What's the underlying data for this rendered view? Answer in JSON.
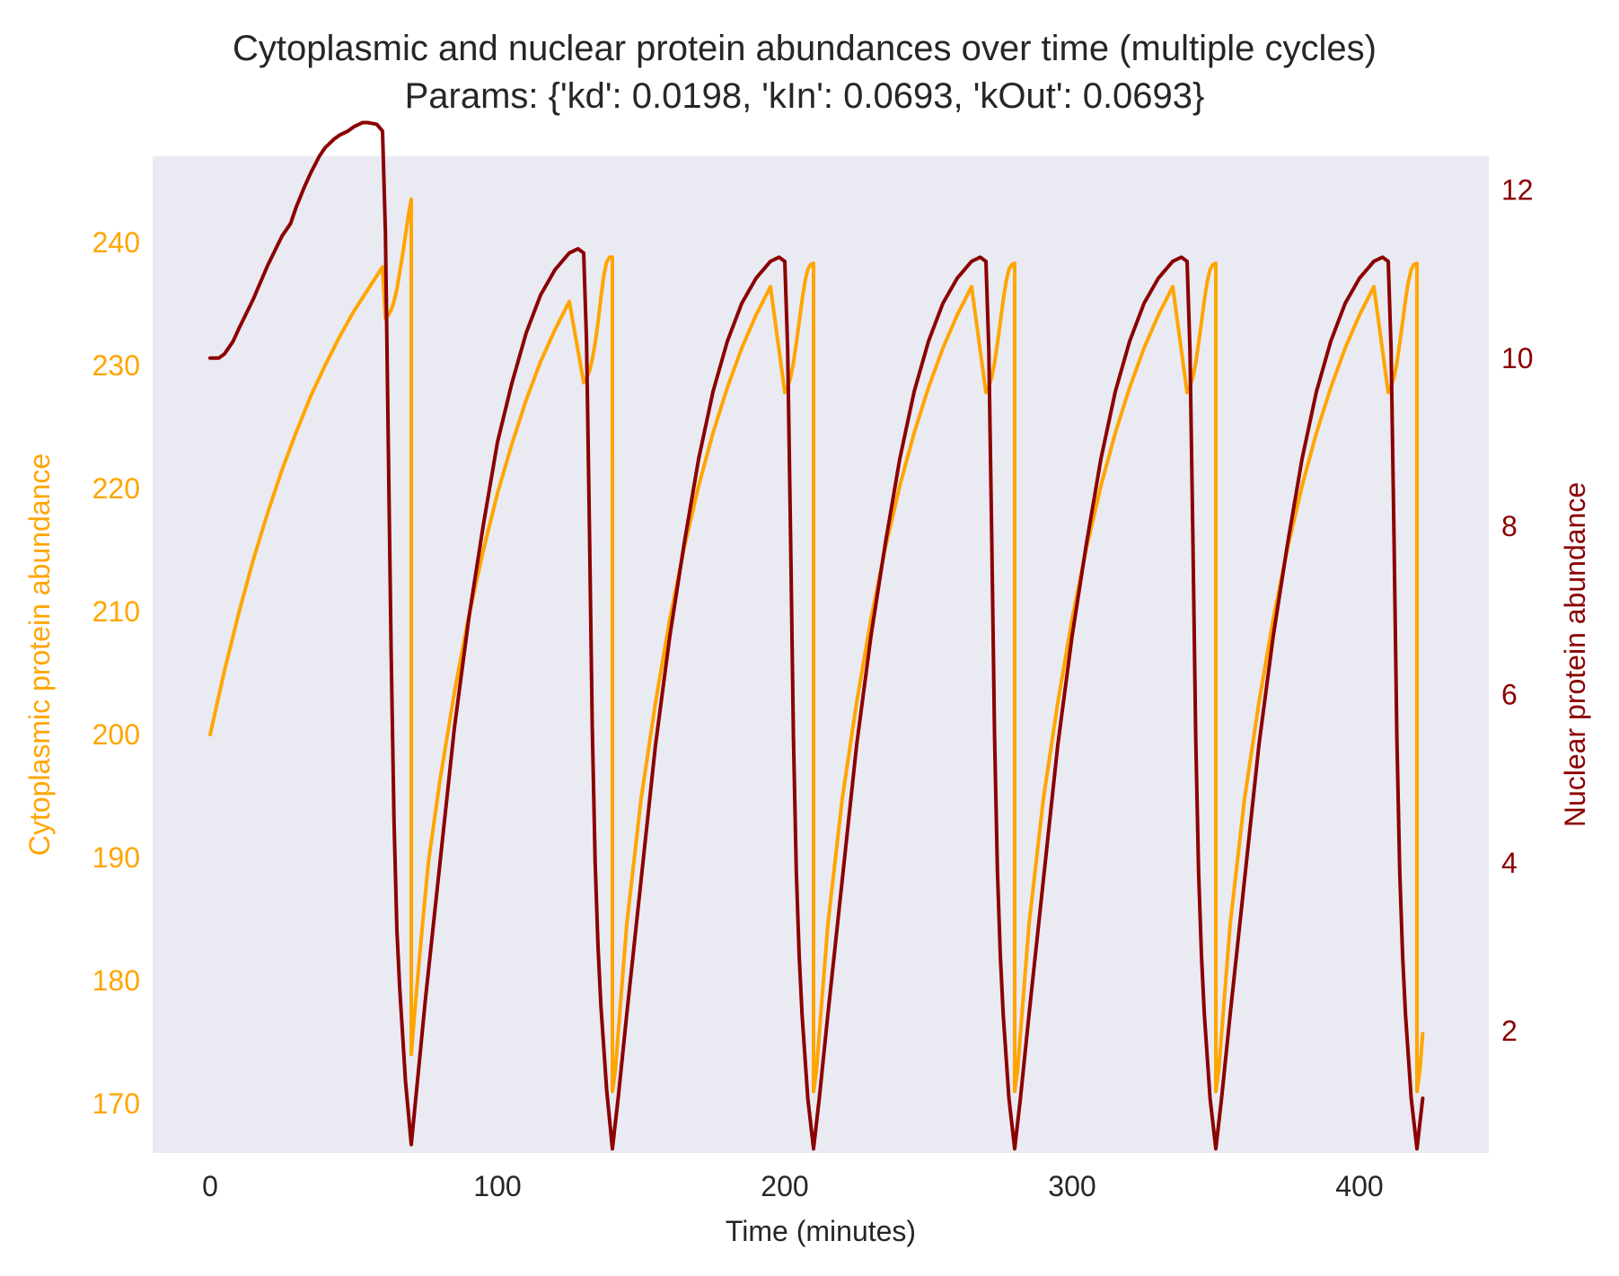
{
  "chart_data": {
    "type": "line",
    "title": "Cytoplasmic and nuclear protein abundances over time (multiple cycles)",
    "subtitle": "Params: {'kd': 0.0198, 'kIn': 0.0693, 'kOut': 0.0693}",
    "xlabel": "Time (minutes)",
    "ylabel_left": "Cytoplasmic protein abundance",
    "ylabel_right": "Nuclear protein abundance",
    "xlim": [
      -20,
      445
    ],
    "ylim_left": [
      166,
      247
    ],
    "ylim_right": [
      0.55,
      12.4
    ],
    "x_ticks": [
      0,
      100,
      200,
      300,
      400
    ],
    "y_ticks_left": [
      170,
      180,
      190,
      200,
      210,
      220,
      230,
      240
    ],
    "y_ticks_right": [
      2,
      4,
      6,
      8,
      10,
      12
    ],
    "grid": false,
    "background": "#eaeaf2",
    "colors": {
      "cytoplasmic": "#ffa500",
      "nuclear": "#8b0000",
      "text": "#262626"
    },
    "series": [
      {
        "axis": "left",
        "color": "#ffa500",
        "x": [
          0,
          5,
          10,
          15,
          20,
          25,
          30,
          35,
          40,
          45,
          50,
          55,
          60,
          61,
          62,
          63,
          64,
          65,
          66,
          67,
          68,
          69,
          70,
          70.01,
          71,
          72,
          74,
          76,
          80,
          85,
          90,
          95,
          100,
          105,
          110,
          115,
          120,
          125,
          130,
          131,
          132,
          133,
          134,
          135,
          136,
          137,
          138,
          139,
          140,
          140.01,
          141,
          142,
          145,
          150,
          155,
          160,
          165,
          170,
          175,
          180,
          185,
          190,
          195,
          200,
          201,
          202,
          203,
          204,
          205,
          206,
          207,
          208,
          209,
          210,
          210.01,
          211,
          212,
          215,
          220,
          225,
          230,
          235,
          240,
          245,
          250,
          255,
          260,
          265,
          270,
          271,
          272,
          273,
          274,
          275,
          276,
          277,
          278,
          279,
          280,
          280.01,
          281,
          282,
          285,
          290,
          295,
          300,
          305,
          310,
          315,
          320,
          325,
          330,
          335,
          340,
          341,
          342,
          343,
          344,
          345,
          346,
          347,
          348,
          349,
          350,
          350.01,
          351,
          352,
          355,
          360,
          365,
          370,
          375,
          380,
          385,
          390,
          395,
          400,
          405,
          410,
          411,
          412,
          413,
          414,
          415,
          416,
          417,
          418,
          419,
          420,
          420.01,
          421,
          422
        ],
        "values": [
          200.0,
          205.2,
          209.9,
          214.2,
          218.0,
          221.5,
          224.6,
          227.5,
          230.0,
          232.3,
          234.4,
          236.2,
          238.0,
          233.8,
          234.1,
          234.5,
          235.2,
          236.2,
          237.6,
          239.0,
          240.6,
          242.2,
          243.5,
          174.0,
          176.9,
          179.6,
          184.8,
          189.7,
          196.3,
          203.4,
          209.6,
          214.9,
          219.6,
          223.6,
          227.2,
          230.3,
          232.9,
          235.2,
          228.6,
          229.0,
          229.5,
          230.5,
          231.8,
          233.5,
          235.5,
          237.3,
          238.4,
          238.8,
          238.8,
          171.0,
          172.7,
          175.7,
          184.6,
          194.8,
          202.6,
          209.4,
          215.2,
          220.2,
          224.5,
          228.2,
          231.4,
          234.1,
          236.4,
          227.8,
          228.3,
          229.0,
          230.2,
          231.8,
          233.5,
          235.3,
          236.8,
          237.8,
          238.2,
          238.3,
          171.0,
          172.7,
          175.7,
          184.6,
          194.8,
          202.6,
          209.4,
          215.2,
          220.2,
          224.5,
          228.2,
          231.4,
          234.1,
          236.4,
          227.8,
          228.3,
          229.0,
          230.2,
          231.8,
          233.5,
          235.3,
          236.8,
          237.8,
          238.2,
          238.3,
          171.0,
          172.7,
          175.7,
          184.6,
          194.8,
          202.6,
          209.4,
          215.2,
          220.2,
          224.5,
          228.2,
          231.4,
          234.1,
          236.4,
          227.8,
          228.3,
          229.0,
          230.2,
          231.8,
          233.5,
          235.3,
          236.8,
          237.8,
          238.2,
          238.3,
          171.0,
          172.7,
          175.7,
          184.6,
          194.8,
          202.6,
          209.4,
          215.2,
          220.2,
          224.5,
          228.2,
          231.4,
          234.1,
          236.4,
          227.8,
          228.3,
          229.0,
          230.2,
          231.8,
          233.5,
          235.3,
          236.8,
          237.8,
          238.2,
          238.3,
          171.0,
          172.7,
          175.7
        ]
      },
      {
        "axis": "right",
        "color": "#8b0000",
        "x": [
          0,
          3,
          5,
          8,
          10,
          15,
          20,
          25,
          28,
          30,
          33,
          35,
          38,
          40,
          43,
          45,
          48,
          50,
          53,
          55,
          58,
          60,
          61,
          62,
          63,
          64,
          65,
          66,
          68,
          70,
          72,
          75,
          80,
          85,
          90,
          95,
          100,
          105,
          110,
          115,
          120,
          125,
          128,
          130,
          131,
          132,
          133,
          134,
          135,
          136,
          138,
          140,
          142,
          145,
          150,
          155,
          160,
          165,
          170,
          175,
          180,
          185,
          190,
          195,
          198,
          200,
          201,
          202,
          203,
          204,
          205,
          206,
          208,
          210,
          212,
          215,
          220,
          225,
          230,
          235,
          240,
          245,
          250,
          255,
          260,
          265,
          268,
          270,
          271,
          272,
          273,
          274,
          275,
          276,
          278,
          280,
          282,
          285,
          290,
          295,
          300,
          305,
          310,
          315,
          320,
          325,
          330,
          335,
          338,
          340,
          341,
          342,
          343,
          344,
          345,
          346,
          348,
          350,
          352,
          355,
          360,
          365,
          370,
          375,
          380,
          385,
          390,
          395,
          400,
          405,
          408,
          410,
          411,
          412,
          413,
          414,
          415,
          416,
          418,
          420,
          422
        ],
        "values": [
          10.0,
          10.0,
          10.05,
          10.2,
          10.35,
          10.7,
          11.1,
          11.45,
          11.6,
          11.8,
          12.05,
          12.2,
          12.4,
          12.5,
          12.6,
          12.65,
          12.7,
          12.75,
          12.8,
          12.8,
          12.78,
          12.7,
          11.5,
          9.0,
          6.5,
          4.5,
          3.2,
          2.5,
          1.4,
          0.65,
          1.35,
          2.4,
          4.0,
          5.6,
          6.9,
          8.0,
          9.0,
          9.7,
          10.3,
          10.75,
          11.05,
          11.25,
          11.3,
          11.25,
          10.2,
          8.0,
          5.6,
          4.0,
          3.0,
          2.3,
          1.3,
          0.6,
          1.2,
          2.2,
          3.8,
          5.4,
          6.7,
          7.8,
          8.8,
          9.6,
          10.2,
          10.65,
          10.95,
          11.15,
          11.2,
          11.15,
          10.1,
          7.9,
          5.5,
          3.9,
          2.9,
          2.2,
          1.2,
          0.6,
          1.2,
          2.2,
          3.8,
          5.4,
          6.7,
          7.8,
          8.8,
          9.6,
          10.2,
          10.65,
          10.95,
          11.15,
          11.2,
          11.15,
          10.1,
          7.9,
          5.5,
          3.9,
          2.9,
          2.2,
          1.2,
          0.6,
          1.2,
          2.2,
          3.8,
          5.4,
          6.7,
          7.8,
          8.8,
          9.6,
          10.2,
          10.65,
          10.95,
          11.15,
          11.2,
          11.15,
          10.1,
          7.9,
          5.5,
          3.9,
          2.9,
          2.2,
          1.2,
          0.6,
          1.2,
          2.2,
          3.8,
          5.4,
          6.7,
          7.8,
          8.8,
          9.6,
          10.2,
          10.65,
          10.95,
          11.15,
          11.2,
          11.15,
          10.1,
          7.9,
          5.5,
          3.9,
          2.9,
          2.2,
          1.2,
          0.6,
          1.2
        ]
      }
    ]
  }
}
